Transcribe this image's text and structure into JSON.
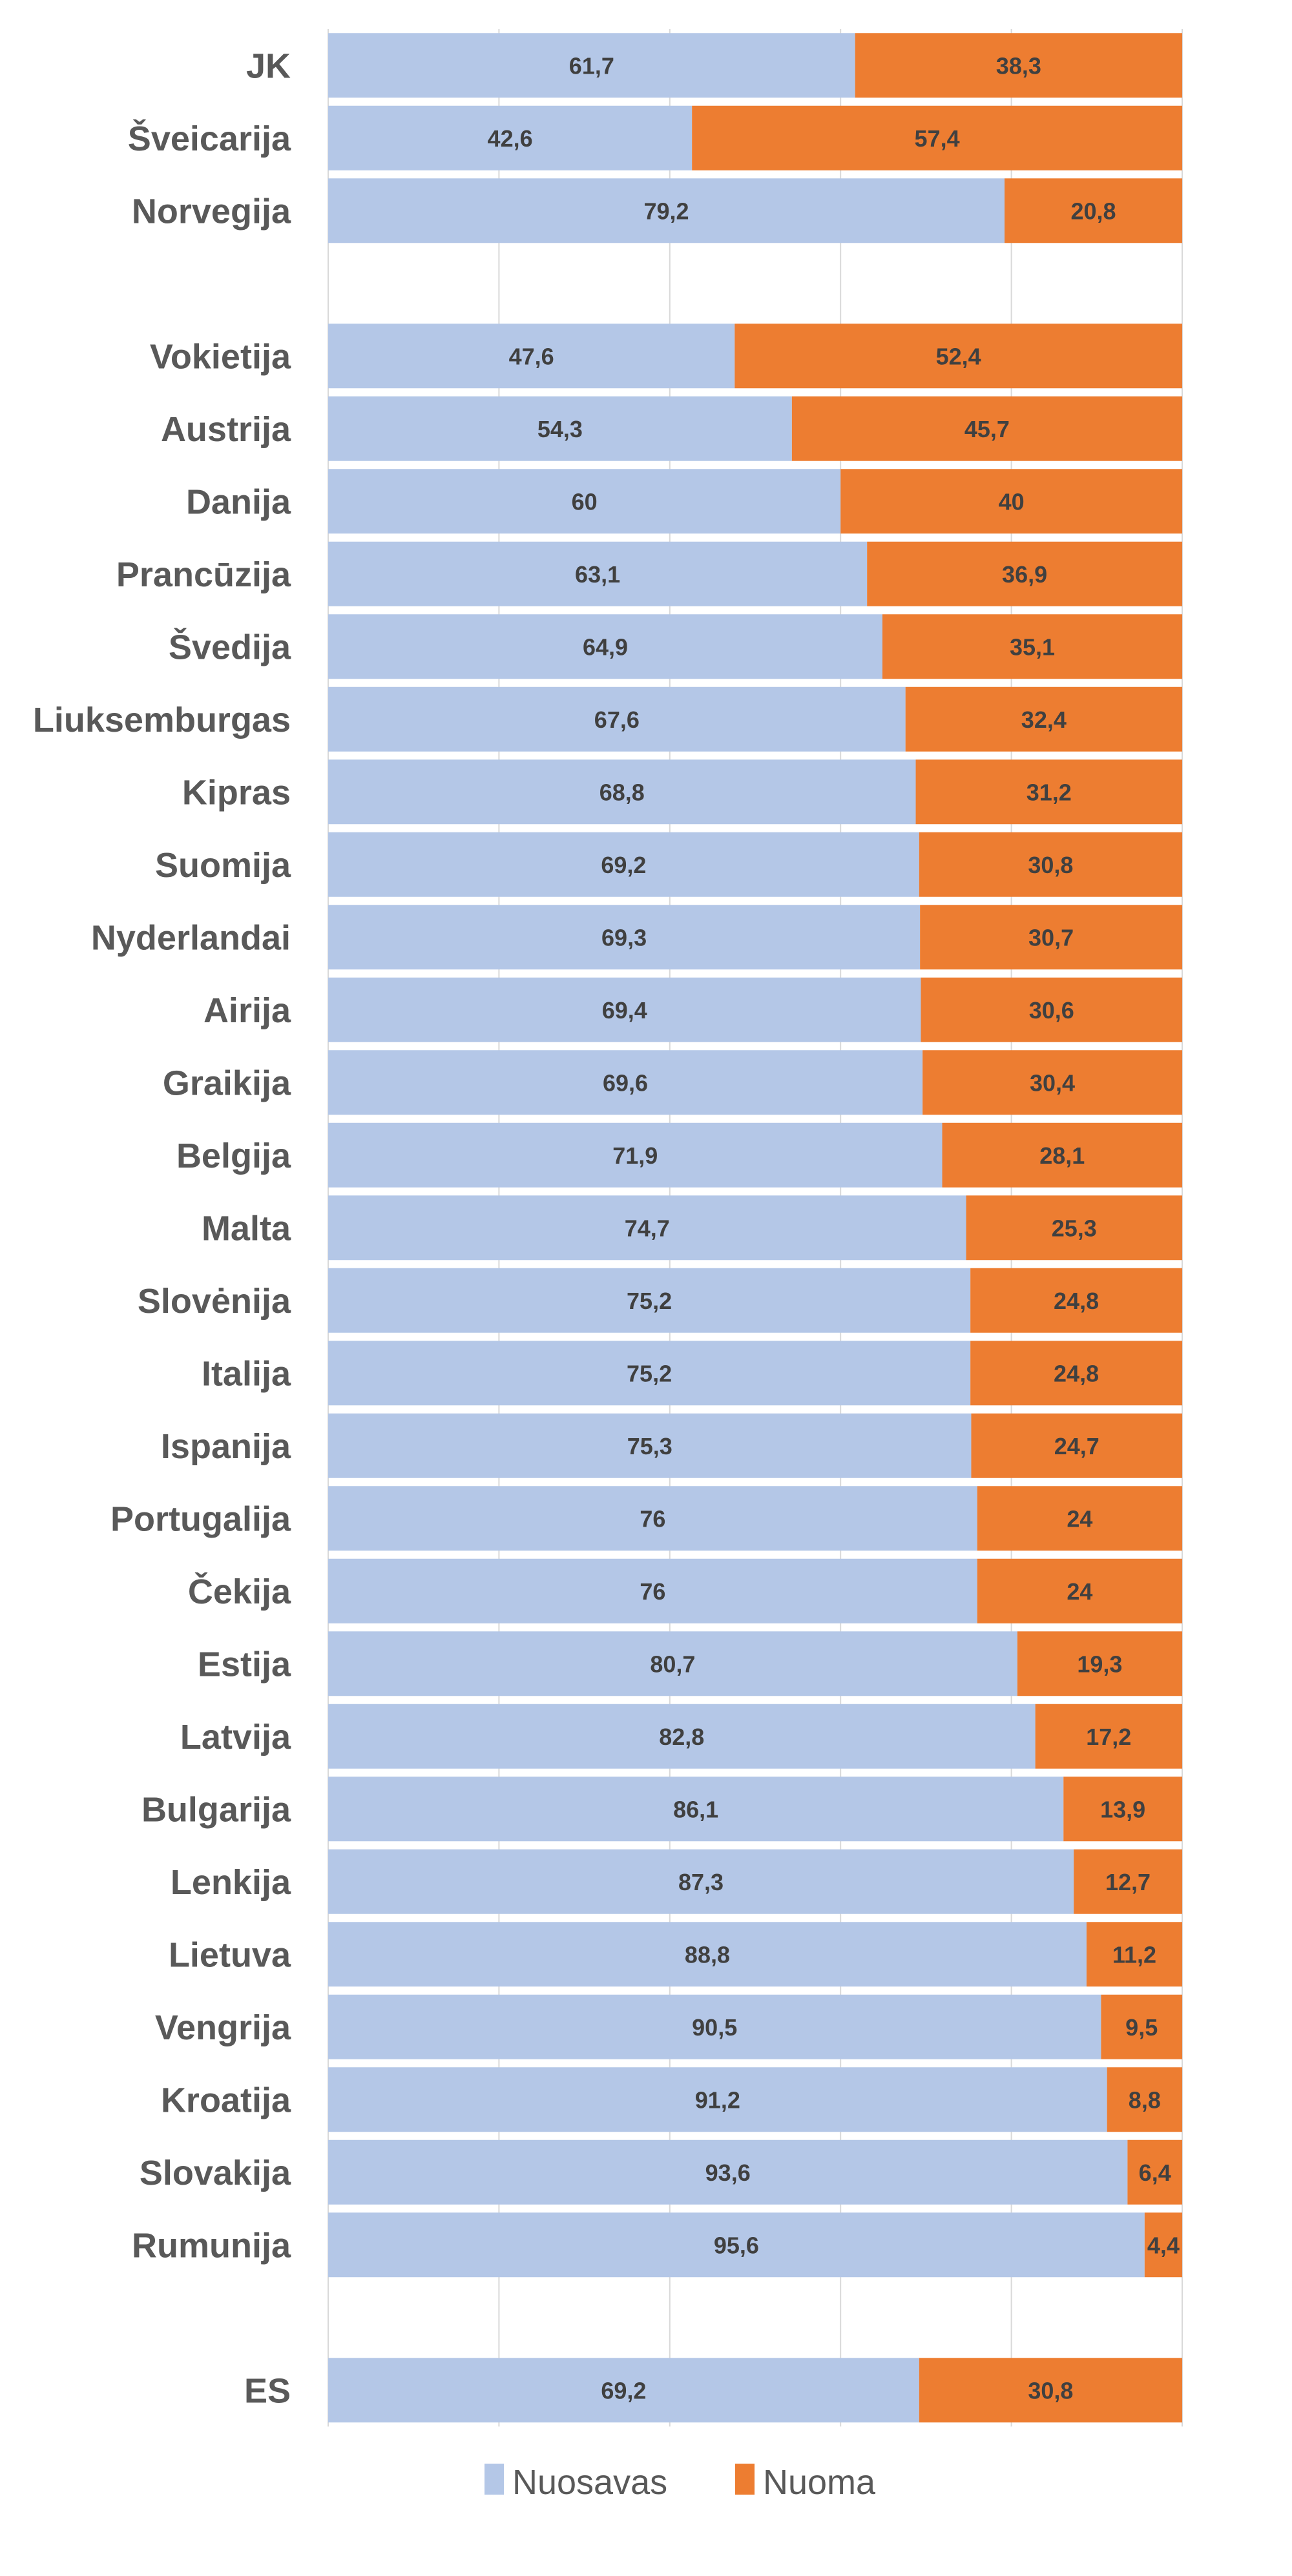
{
  "chart_data": {
    "type": "bar",
    "orientation": "horizontal",
    "stacked": true,
    "title": "",
    "xlabel": "",
    "ylabel": "",
    "xlim": [
      0,
      100
    ],
    "grid": true,
    "legend_position": "bottom",
    "categories": [
      "JK",
      "Šveicarija",
      "Norvegija",
      "",
      "Vokietija",
      "Austrija",
      "Danija",
      "Prancūzija",
      "Švedija",
      "Liuksemburgas",
      "Kipras",
      "Suomija",
      "Nyderlandai",
      "Airija",
      "Graikija",
      "Belgija",
      "Malta",
      "Slovėnija",
      "Italija",
      "Ispanija",
      "Portugalija",
      "Čekija",
      "Estija",
      "Latvija",
      "Bulgarija",
      "Lenkija",
      "Lietuva",
      "Vengrija",
      "Kroatija",
      "Slovakija",
      "Rumunija",
      "",
      "ES"
    ],
    "series": [
      {
        "name": "Nuosavas",
        "color": "#b4c7e7",
        "values": [
          61.7,
          42.6,
          79.2,
          null,
          47.6,
          54.3,
          60,
          63.1,
          64.9,
          67.6,
          68.8,
          69.2,
          69.3,
          69.4,
          69.6,
          71.9,
          74.7,
          75.2,
          75.2,
          75.3,
          76,
          76,
          80.7,
          82.8,
          86.1,
          87.3,
          88.8,
          90.5,
          91.2,
          93.6,
          95.6,
          null,
          69.2
        ],
        "labels": [
          "61,7",
          "42,6",
          "79,2",
          null,
          "47,6",
          "54,3",
          "60",
          "63,1",
          "64,9",
          "67,6",
          "68,8",
          "69,2",
          "69,3",
          "69,4",
          "69,6",
          "71,9",
          "74,7",
          "75,2",
          "75,2",
          "75,3",
          "76",
          "76",
          "80,7",
          "82,8",
          "86,1",
          "87,3",
          "88,8",
          "90,5",
          "91,2",
          "93,6",
          "95,6",
          null,
          "69,2"
        ]
      },
      {
        "name": "Nuoma",
        "color": "#ed7d31",
        "values": [
          38.3,
          57.4,
          20.8,
          null,
          52.4,
          45.7,
          40,
          36.9,
          35.1,
          32.4,
          31.2,
          30.8,
          30.7,
          30.6,
          30.4,
          28.1,
          25.3,
          24.8,
          24.8,
          24.7,
          24,
          24,
          19.3,
          17.2,
          13.9,
          12.7,
          11.2,
          9.5,
          8.8,
          6.4,
          4.4,
          null,
          30.8
        ],
        "labels": [
          "38,3",
          "57,4",
          "20,8",
          null,
          "52,4",
          "45,7",
          "40",
          "36,9",
          "35,1",
          "32,4",
          "31,2",
          "30,8",
          "30,7",
          "30,6",
          "30,4",
          "28,1",
          "25,3",
          "24,8",
          "24,8",
          "24,7",
          "24",
          "24",
          "19,3",
          "17,2",
          "13,9",
          "12,7",
          "11,2",
          "9,5",
          "8,8",
          "6,4",
          "4,4",
          null,
          "30,8"
        ]
      }
    ]
  }
}
